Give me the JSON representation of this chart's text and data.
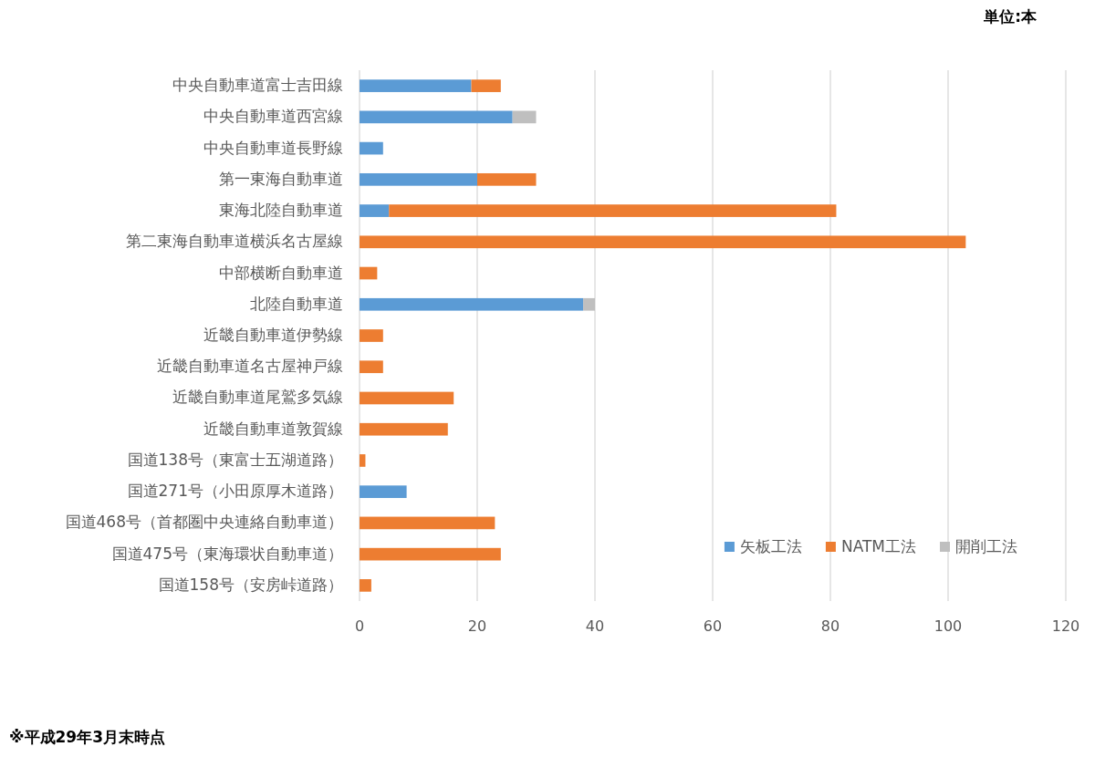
{
  "chart_data": {
    "type": "bar",
    "orientation": "horizontal",
    "stacked": true,
    "categories": [
      "中央自動車道富士吉田線",
      "中央自動車道西宮線",
      "中央自動車道長野線",
      "第一東海自動車道",
      "東海北陸自動車道",
      "第二東海自動車道横浜名古屋線",
      "中部横断自動車道",
      "北陸自動車道",
      "近畿自動車道伊勢線",
      "近畿自動車道名古屋神戸線",
      "近畿自動車道尾鷲多気線",
      "近畿自動車道敦賀線",
      "国道138号（東富士五湖道路）",
      "国道271号（小田原厚木道路）",
      "国道468号（首都圏中央連絡自動車道）",
      "国道475号（東海環状自動車道）",
      "国道158号（安房峠道路）"
    ],
    "series": [
      {
        "name": "矢板工法",
        "color": "#5b9bd5",
        "values": [
          19,
          26,
          4,
          20,
          5,
          null,
          null,
          38,
          null,
          null,
          null,
          null,
          null,
          8,
          null,
          null,
          null
        ]
      },
      {
        "name": "NATM工法",
        "color": "#ed7d31",
        "values": [
          5,
          null,
          null,
          10,
          76,
          103,
          3,
          null,
          4,
          4,
          16,
          15,
          1,
          null,
          23,
          24,
          2
        ]
      },
      {
        "name": "開削工法",
        "color": "#bfbfbf",
        "values": [
          null,
          4,
          null,
          null,
          null,
          null,
          null,
          2,
          null,
          null,
          null,
          null,
          null,
          null,
          null,
          null,
          null
        ]
      }
    ],
    "xlim": [
      0,
      120
    ],
    "xticks": [
      0,
      20,
      40,
      60,
      80,
      100,
      120
    ],
    "grid": "x",
    "legend": "bottom right",
    "annotations": [
      "単位:本",
      "※平成29年3月末時点"
    ]
  }
}
